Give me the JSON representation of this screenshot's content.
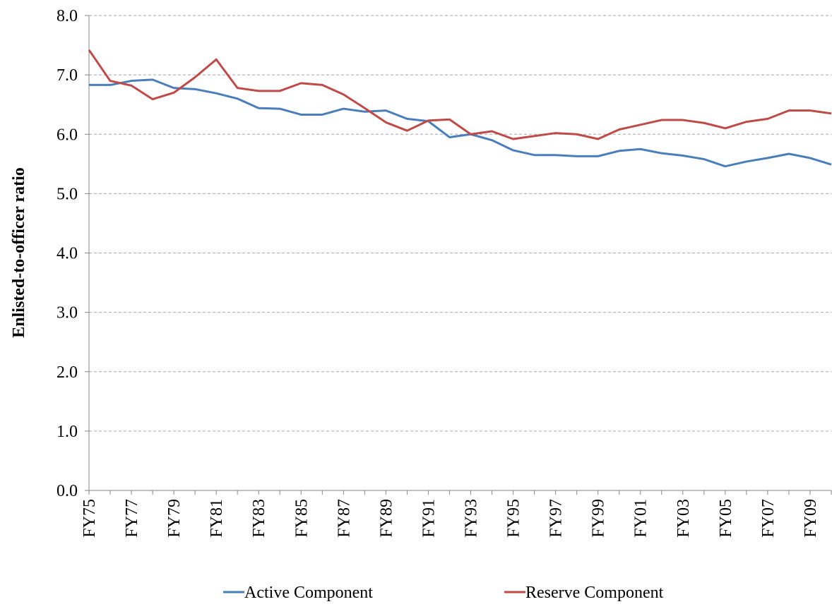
{
  "chart_data": {
    "type": "line",
    "y_label": "Enlisted-to-officer ratio",
    "categories": [
      "FY75",
      null,
      "FY77",
      null,
      "FY79",
      null,
      "FY81",
      null,
      "FY83",
      null,
      "FY85",
      null,
      "FY87",
      null,
      "FY89",
      null,
      "FY91",
      null,
      "FY93",
      null,
      "FY95",
      null,
      "FY97",
      null,
      "FY99",
      null,
      "FY01",
      null,
      "FY03",
      null,
      "FY05",
      null,
      "FY07",
      null,
      "FY09",
      null
    ],
    "series": [
      {
        "name": "Active Component",
        "color": "#4a7ebb",
        "values": [
          6.83,
          6.83,
          6.9,
          6.92,
          6.78,
          6.76,
          6.69,
          6.6,
          6.44,
          6.43,
          6.33,
          6.33,
          6.43,
          6.38,
          6.4,
          6.26,
          6.22,
          5.95,
          6.0,
          5.9,
          5.73,
          5.65,
          5.65,
          5.63,
          5.63,
          5.72,
          5.75,
          5.68,
          5.64,
          5.58,
          5.46,
          5.54,
          5.6,
          5.67,
          5.6,
          5.49
        ]
      },
      {
        "name": "Reserve Component",
        "color": "#be4b48",
        "values": [
          7.42,
          6.9,
          6.82,
          6.59,
          6.7,
          6.96,
          7.26,
          6.78,
          6.73,
          6.73,
          6.86,
          6.83,
          6.67,
          6.44,
          6.2,
          6.06,
          6.23,
          6.25,
          6.0,
          6.05,
          5.92,
          5.97,
          6.02,
          6.0,
          5.92,
          6.08,
          6.16,
          6.24,
          6.24,
          6.19,
          6.1,
          6.21,
          6.26,
          6.4,
          6.4,
          6.35
        ]
      }
    ],
    "ylim": [
      0,
      8
    ],
    "yticks": [
      {
        "value": 0,
        "label": "0.0"
      },
      {
        "value": 1,
        "label": "1.0"
      },
      {
        "value": 2,
        "label": "2.0"
      },
      {
        "value": 3,
        "label": "3.0"
      },
      {
        "value": 4,
        "label": "4.0"
      },
      {
        "value": 5,
        "label": "5.0"
      },
      {
        "value": 6,
        "label": "6.0"
      },
      {
        "value": 7,
        "label": "7.0"
      },
      {
        "value": 8,
        "label": "8.0"
      }
    ],
    "grid": true,
    "legend": "bottom"
  }
}
